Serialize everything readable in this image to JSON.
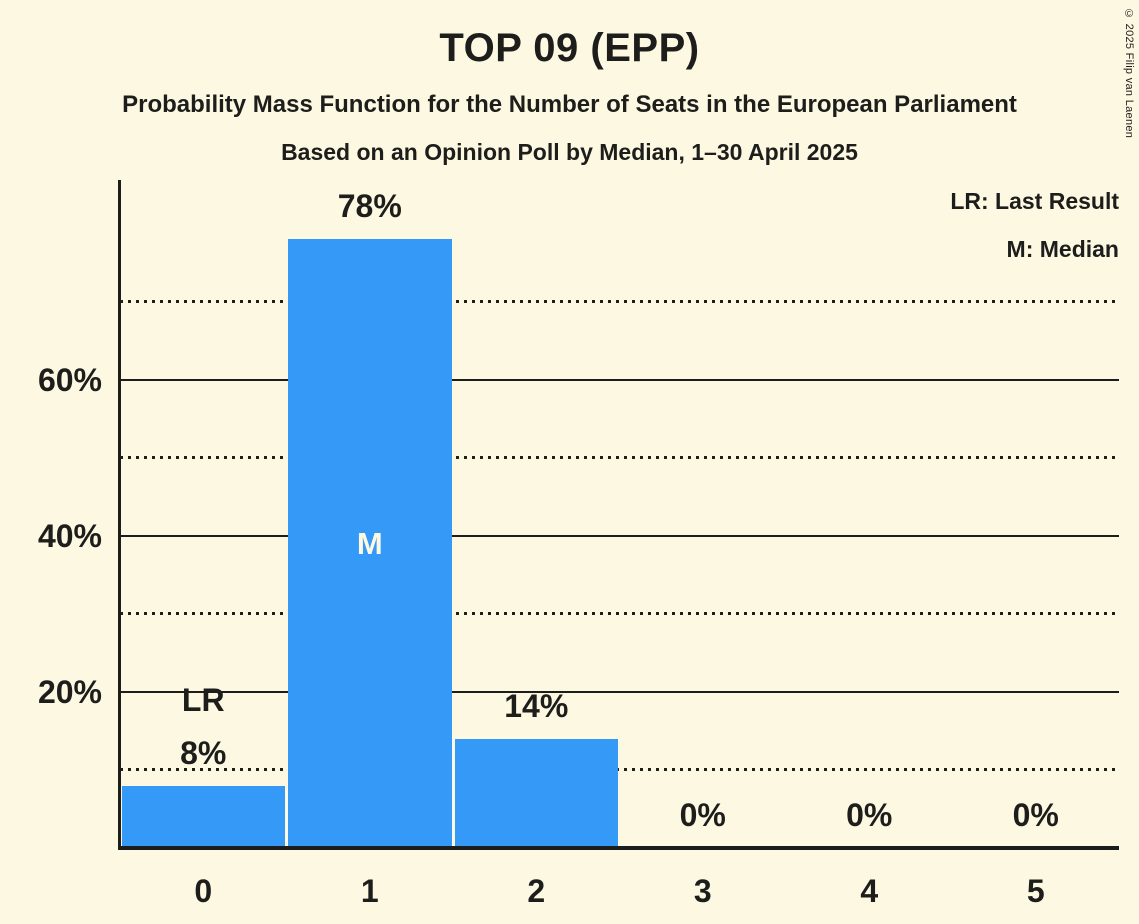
{
  "title": "TOP 09 (EPP)",
  "subtitle": "Probability Mass Function for the Number of Seats in the European Parliament",
  "poll_line": "Based on an Opinion Poll by Median, 1–30 April 2025",
  "copyright": "© 2025 Filip van Laenen",
  "legend": {
    "lr_label": "LR: Last Result",
    "m_label": "M: Median"
  },
  "colors": {
    "background": "#FDF8E2",
    "bar": "#3499F7",
    "text": "#1D1D1B",
    "median_text": "#FDF8E2"
  },
  "chart_data": {
    "type": "bar",
    "title": "TOP 09 (EPP)",
    "categories": [
      "0",
      "1",
      "2",
      "3",
      "4",
      "5"
    ],
    "values": [
      8,
      78,
      14,
      0,
      0,
      0
    ],
    "bar_labels": [
      "8%",
      "78%",
      "14%",
      "0%",
      "0%",
      "0%"
    ],
    "y_axis_ticks": [
      {
        "value": 20,
        "label": "20%"
      },
      {
        "value": 40,
        "label": "40%"
      },
      {
        "value": 60,
        "label": "60%"
      }
    ],
    "solid_gridlines": [
      20,
      40,
      60
    ],
    "dotted_gridlines": [
      10,
      30,
      50,
      70
    ],
    "ylim": [
      0,
      85.6
    ],
    "grid": "horizontal",
    "legend_position": "top-right",
    "annotations": {
      "lr_text": "LR",
      "lr_bar_index": 0,
      "median_text": "M",
      "median_bar_index": 1
    }
  }
}
